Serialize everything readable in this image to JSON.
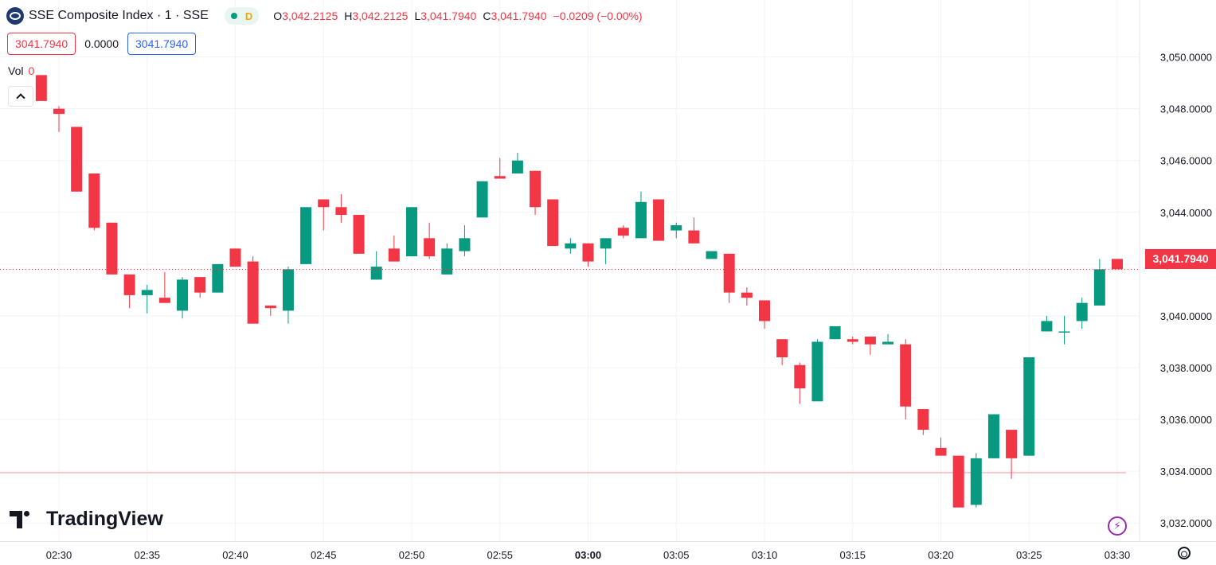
{
  "header": {
    "title": "SSE Composite Index · 1 · SSE",
    "source_badge": "D",
    "ohlc": {
      "o_label": "O",
      "o_value": "3,042.2125",
      "h_label": "H",
      "h_value": "3,042.2125",
      "l_label": "L",
      "l_value": "3,041.7940",
      "c_label": "C",
      "c_value": "3,041.7940",
      "change": "−0.0209 (−0.00%)"
    }
  },
  "quote_row": {
    "bid": "3041.7940",
    "spread": "0.0000",
    "ask": "3041.7940"
  },
  "volume": {
    "label": "Vol",
    "value": "0"
  },
  "branding": {
    "name": "TradingView"
  },
  "colors": {
    "up": "#089981",
    "down": "#f23645",
    "grid": "#f0f3fa",
    "axis_text": "#131722",
    "price_line": "#f23645"
  },
  "icons": [
    "logo-icon",
    "chevron-up-icon",
    "lightning-icon",
    "settings-icon"
  ],
  "chart_data": {
    "type": "candlestick",
    "title": "SSE Composite Index · 1 · SSE",
    "x_ticks": [
      "02:30",
      "02:35",
      "02:40",
      "02:45",
      "02:50",
      "02:55",
      "03:00",
      "03:05",
      "03:10",
      "03:15",
      "03:20",
      "03:25",
      "03:30"
    ],
    "y_ticks": [
      "3,032.0000",
      "3,034.0000",
      "3,036.0000",
      "3,038.0000",
      "3,040.0000",
      "3,042.0000",
      "3,044.0000",
      "3,046.0000",
      "3,048.0000",
      "3,050.0000"
    ],
    "y_tick_values": [
      3032,
      3034,
      3036,
      3038,
      3040,
      3042,
      3044,
      3046,
      3048,
      3050
    ],
    "ylim": [
      3031.3,
      3052.2
    ],
    "last_price": 3041.794,
    "last_price_label": "3,041.7940",
    "candles": [
      {
        "t": "02:29",
        "o": 3049.3,
        "h": 3049.3,
        "l": 3048.3,
        "c": 3048.3
      },
      {
        "t": "02:30",
        "o": 3048.0,
        "h": 3048.1,
        "l": 3047.1,
        "c": 3047.8
      },
      {
        "t": "02:31",
        "o": 3047.3,
        "h": 3047.3,
        "l": 3044.8,
        "c": 3044.8
      },
      {
        "t": "02:32",
        "o": 3045.5,
        "h": 3045.5,
        "l": 3043.3,
        "c": 3043.4
      },
      {
        "t": "02:33",
        "o": 3043.6,
        "h": 3043.6,
        "l": 3041.6,
        "c": 3041.6
      },
      {
        "t": "02:34",
        "o": 3041.6,
        "h": 3041.6,
        "l": 3040.3,
        "c": 3040.8
      },
      {
        "t": "02:35",
        "o": 3040.8,
        "h": 3041.2,
        "l": 3040.1,
        "c": 3041.0
      },
      {
        "t": "02:36",
        "o": 3040.7,
        "h": 3041.7,
        "l": 3040.5,
        "c": 3040.5
      },
      {
        "t": "02:37",
        "o": 3040.2,
        "h": 3041.5,
        "l": 3039.9,
        "c": 3041.4
      },
      {
        "t": "02:38",
        "o": 3041.5,
        "h": 3041.5,
        "l": 3040.7,
        "c": 3040.9
      },
      {
        "t": "02:39",
        "o": 3040.9,
        "h": 3042.0,
        "l": 3040.9,
        "c": 3042.0
      },
      {
        "t": "02:40",
        "o": 3042.6,
        "h": 3042.6,
        "l": 3041.9,
        "c": 3041.9
      },
      {
        "t": "02:41",
        "o": 3042.1,
        "h": 3042.3,
        "l": 3039.7,
        "c": 3039.7
      },
      {
        "t": "02:42",
        "o": 3040.4,
        "h": 3040.4,
        "l": 3040.0,
        "c": 3040.3
      },
      {
        "t": "02:43",
        "o": 3040.2,
        "h": 3041.9,
        "l": 3039.7,
        "c": 3041.8
      },
      {
        "t": "02:44",
        "o": 3042.0,
        "h": 3044.2,
        "l": 3042.0,
        "c": 3044.2
      },
      {
        "t": "02:45",
        "o": 3044.5,
        "h": 3044.5,
        "l": 3043.3,
        "c": 3044.2
      },
      {
        "t": "02:46",
        "o": 3044.2,
        "h": 3044.7,
        "l": 3043.6,
        "c": 3043.9
      },
      {
        "t": "02:47",
        "o": 3043.9,
        "h": 3043.9,
        "l": 3042.4,
        "c": 3042.4
      },
      {
        "t": "02:48",
        "o": 3041.4,
        "h": 3042.5,
        "l": 3041.4,
        "c": 3041.9
      },
      {
        "t": "02:49",
        "o": 3042.6,
        "h": 3043.1,
        "l": 3042.1,
        "c": 3042.1
      },
      {
        "t": "02:50",
        "o": 3042.3,
        "h": 3044.2,
        "l": 3042.3,
        "c": 3044.2
      },
      {
        "t": "02:51",
        "o": 3043.0,
        "h": 3043.6,
        "l": 3042.2,
        "c": 3042.3
      },
      {
        "t": "02:52",
        "o": 3041.6,
        "h": 3042.8,
        "l": 3041.6,
        "c": 3042.6
      },
      {
        "t": "02:53",
        "o": 3042.5,
        "h": 3043.5,
        "l": 3042.3,
        "c": 3043.0
      },
      {
        "t": "02:54",
        "o": 3043.8,
        "h": 3045.2,
        "l": 3043.8,
        "c": 3045.2
      },
      {
        "t": "02:55",
        "o": 3045.4,
        "h": 3046.1,
        "l": 3045.3,
        "c": 3045.3
      },
      {
        "t": "02:56",
        "o": 3045.5,
        "h": 3046.3,
        "l": 3045.5,
        "c": 3046.0
      },
      {
        "t": "02:57",
        "o": 3045.6,
        "h": 3045.6,
        "l": 3043.9,
        "c": 3044.2
      },
      {
        "t": "02:58",
        "o": 3044.5,
        "h": 3044.5,
        "l": 3042.7,
        "c": 3042.7
      },
      {
        "t": "02:59",
        "o": 3042.6,
        "h": 3043.0,
        "l": 3042.4,
        "c": 3042.8
      },
      {
        "t": "03:00",
        "o": 3042.8,
        "h": 3042.8,
        "l": 3041.9,
        "c": 3042.1
      },
      {
        "t": "03:01",
        "o": 3042.6,
        "h": 3043.0,
        "l": 3042.0,
        "c": 3043.0
      },
      {
        "t": "03:02",
        "o": 3043.4,
        "h": 3043.5,
        "l": 3043.0,
        "c": 3043.1
      },
      {
        "t": "03:03",
        "o": 3043.0,
        "h": 3044.8,
        "l": 3043.0,
        "c": 3044.4
      },
      {
        "t": "03:04",
        "o": 3044.5,
        "h": 3044.5,
        "l": 3042.9,
        "c": 3042.9
      },
      {
        "t": "03:05",
        "o": 3043.3,
        "h": 3043.6,
        "l": 3043.0,
        "c": 3043.5
      },
      {
        "t": "03:06",
        "o": 3043.3,
        "h": 3043.8,
        "l": 3042.8,
        "c": 3042.8
      },
      {
        "t": "03:07",
        "o": 3042.2,
        "h": 3042.5,
        "l": 3042.2,
        "c": 3042.5
      },
      {
        "t": "03:08",
        "o": 3042.4,
        "h": 3042.4,
        "l": 3040.5,
        "c": 3040.9
      },
      {
        "t": "03:09",
        "o": 3040.9,
        "h": 3041.1,
        "l": 3040.4,
        "c": 3040.7
      },
      {
        "t": "03:10",
        "o": 3040.6,
        "h": 3040.6,
        "l": 3039.5,
        "c": 3039.8
      },
      {
        "t": "03:11",
        "o": 3039.1,
        "h": 3039.1,
        "l": 3038.1,
        "c": 3038.4
      },
      {
        "t": "03:12",
        "o": 3038.1,
        "h": 3038.2,
        "l": 3036.6,
        "c": 3037.2
      },
      {
        "t": "03:13",
        "o": 3036.7,
        "h": 3039.1,
        "l": 3036.7,
        "c": 3039.0
      },
      {
        "t": "03:14",
        "o": 3039.1,
        "h": 3039.6,
        "l": 3039.1,
        "c": 3039.6
      },
      {
        "t": "03:15",
        "o": 3039.1,
        "h": 3039.2,
        "l": 3038.9,
        "c": 3039.0
      },
      {
        "t": "03:16",
        "o": 3039.2,
        "h": 3039.2,
        "l": 3038.5,
        "c": 3038.9
      },
      {
        "t": "03:17",
        "o": 3038.9,
        "h": 3039.3,
        "l": 3038.9,
        "c": 3039.0
      },
      {
        "t": "03:18",
        "o": 3038.9,
        "h": 3039.1,
        "l": 3036.0,
        "c": 3036.5
      },
      {
        "t": "03:19",
        "o": 3036.4,
        "h": 3036.4,
        "l": 3035.4,
        "c": 3035.6
      },
      {
        "t": "03:20",
        "o": 3034.9,
        "h": 3035.3,
        "l": 3034.6,
        "c": 3034.6
      },
      {
        "t": "03:21",
        "o": 3034.6,
        "h": 3034.6,
        "l": 3032.6,
        "c": 3032.6
      },
      {
        "t": "03:22",
        "o": 3032.7,
        "h": 3034.7,
        "l": 3032.6,
        "c": 3034.5
      },
      {
        "t": "03:23",
        "o": 3034.5,
        "h": 3036.2,
        "l": 3034.5,
        "c": 3036.2
      },
      {
        "t": "03:24",
        "o": 3035.6,
        "h": 3035.6,
        "l": 3033.7,
        "c": 3034.5
      },
      {
        "t": "03:25",
        "o": 3034.6,
        "h": 3038.4,
        "l": 3034.6,
        "c": 3038.4
      },
      {
        "t": "03:26",
        "o": 3039.4,
        "h": 3040.0,
        "l": 3039.4,
        "c": 3039.8
      },
      {
        "t": "03:27",
        "o": 3039.4,
        "h": 3040.0,
        "l": 3038.9,
        "c": 3039.4
      },
      {
        "t": "03:28",
        "o": 3039.8,
        "h": 3040.7,
        "l": 3039.5,
        "c": 3040.5
      },
      {
        "t": "03:29",
        "o": 3040.4,
        "h": 3042.2,
        "l": 3040.4,
        "c": 3041.8
      },
      {
        "t": "03:30",
        "o": 3042.2,
        "h": 3042.2,
        "l": 3041.8,
        "c": 3041.8
      }
    ]
  }
}
